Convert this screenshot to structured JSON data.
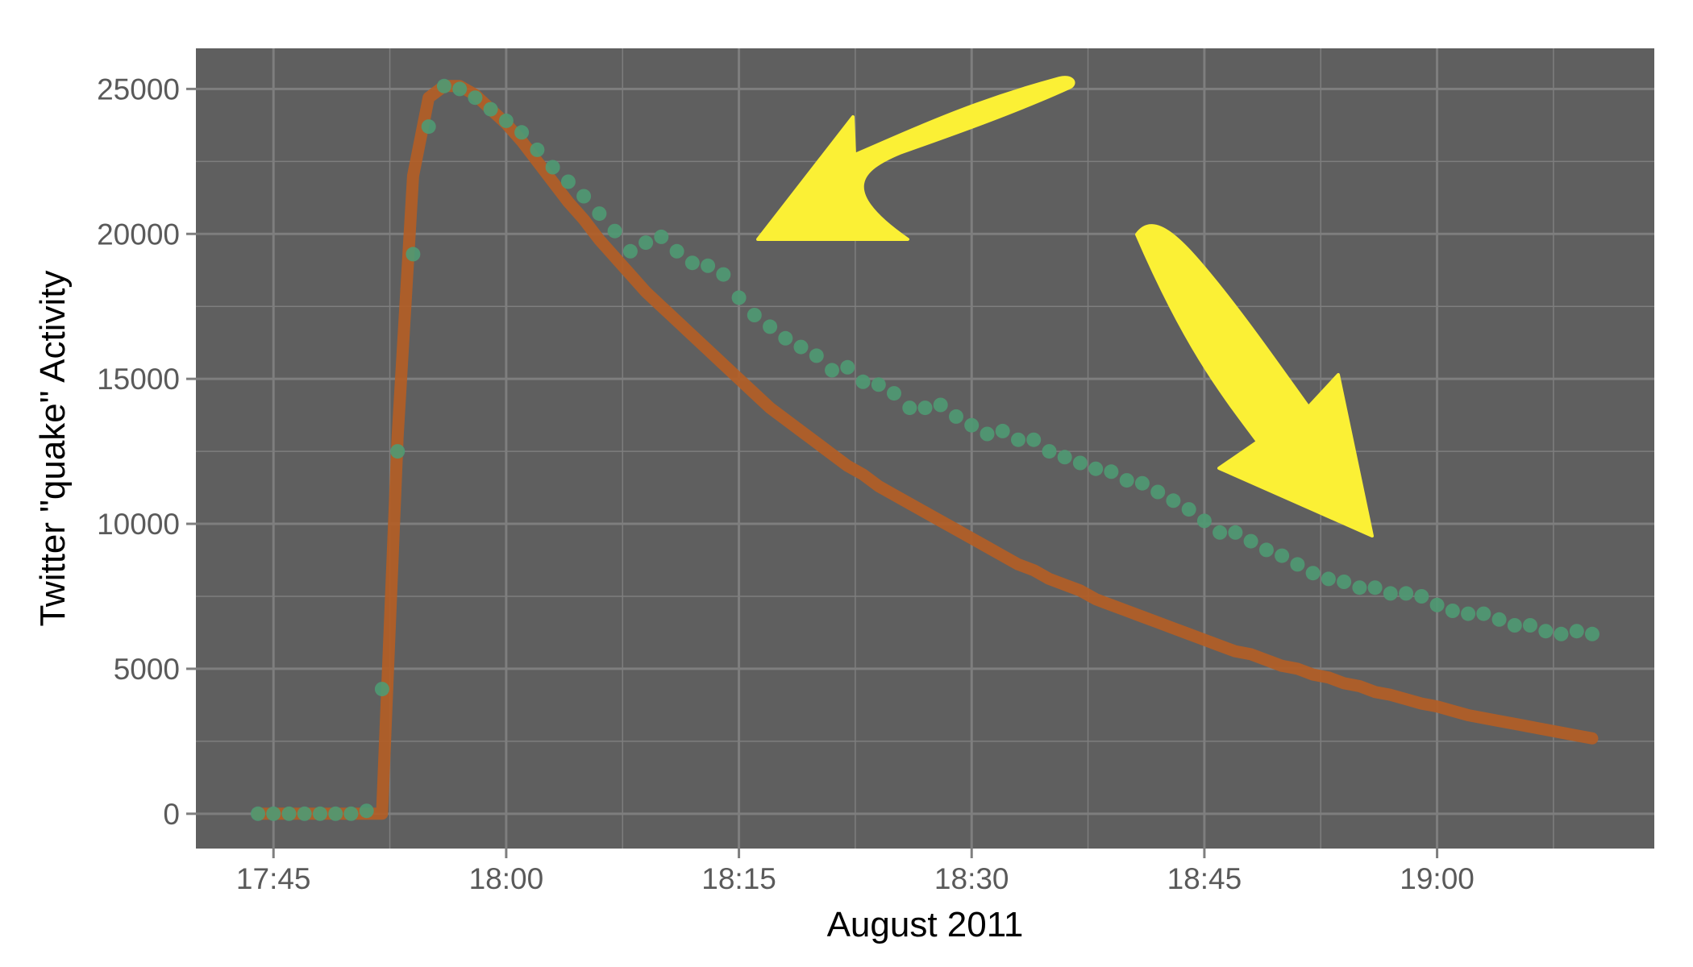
{
  "chart_data": {
    "type": "scatter",
    "title": "",
    "xlabel": "August 2011",
    "ylabel": "Twitter \"quake\" Activity",
    "x_unit": "time of day (HH:MM)",
    "xlim": [
      "17:40",
      "19:14"
    ],
    "ylim": [
      -1200,
      26400
    ],
    "x_ticks": [
      "17:45",
      "18:00",
      "18:15",
      "18:30",
      "18:45",
      "19:00"
    ],
    "y_ticks": [
      0,
      5000,
      10000,
      15000,
      20000,
      25000
    ],
    "y_tick_labels": [
      "0",
      "5000",
      "10000",
      "15000",
      "20000",
      "25000"
    ],
    "grid": true,
    "legend": "none",
    "colors": {
      "panel": "#5f5f5f",
      "grid": "#7e7e7e",
      "observed_points": "#4f9a73",
      "fitted_curve": "#b35e26",
      "arrows": "#fbf035"
    },
    "series": [
      {
        "kind": "points",
        "x": [
          "17:44",
          "17:45",
          "17:46",
          "17:47",
          "17:48",
          "17:49",
          "17:50",
          "17:51",
          "17:52",
          "17:53",
          "17:54",
          "17:55",
          "17:56",
          "17:57",
          "17:58",
          "17:59",
          "18:00",
          "18:01",
          "18:02",
          "18:03",
          "18:04",
          "18:05",
          "18:06",
          "18:07",
          "18:08",
          "18:09",
          "18:10",
          "18:11",
          "18:12",
          "18:13",
          "18:14",
          "18:15",
          "18:16",
          "18:17",
          "18:18",
          "18:19",
          "18:20",
          "18:21",
          "18:22",
          "18:23",
          "18:24",
          "18:25",
          "18:26",
          "18:27",
          "18:28",
          "18:29",
          "18:30",
          "18:31",
          "18:32",
          "18:33",
          "18:34",
          "18:35",
          "18:36",
          "18:37",
          "18:38",
          "18:39",
          "18:40",
          "18:41",
          "18:42",
          "18:43",
          "18:44",
          "18:45",
          "18:46",
          "18:47",
          "18:48",
          "18:49",
          "18:50",
          "18:51",
          "18:52",
          "18:53",
          "18:54",
          "18:55",
          "18:56",
          "18:57",
          "18:58",
          "18:59",
          "19:00",
          "19:01",
          "19:02",
          "19:03",
          "19:04",
          "19:05",
          "19:06",
          "19:07",
          "19:08",
          "19:09",
          "19:10"
        ],
        "y": [
          0,
          0,
          0,
          0,
          0,
          0,
          0,
          100,
          4300,
          12500,
          19300,
          23700,
          25100,
          25000,
          24700,
          24300,
          23900,
          23500,
          22900,
          22300,
          21800,
          21300,
          20700,
          20100,
          19400,
          19700,
          19900,
          19400,
          19000,
          18900,
          18600,
          17800,
          17200,
          16800,
          16400,
          16100,
          15800,
          15300,
          15400,
          14900,
          14800,
          14500,
          14000,
          14000,
          14100,
          13700,
          13400,
          13100,
          13200,
          12900,
          12900,
          12500,
          12300,
          12100,
          11900,
          11800,
          11500,
          11400,
          11100,
          10800,
          10500,
          10100,
          9700,
          9700,
          9400,
          9100,
          8900,
          8600,
          8300,
          8100,
          8000,
          7800,
          7800,
          7600,
          7600,
          7500,
          7200,
          7000,
          6900,
          6900,
          6700,
          6500,
          6500,
          6300,
          6200,
          6300,
          6200
        ]
      },
      {
        "kind": "line",
        "x": [
          "17:44",
          "17:45",
          "17:46",
          "17:47",
          "17:48",
          "17:49",
          "17:50",
          "17:51",
          "17:52",
          "17:53",
          "17:54",
          "17:55",
          "17:56",
          "17:57",
          "17:58",
          "17:59",
          "18:00",
          "18:01",
          "18:02",
          "18:03",
          "18:04",
          "18:05",
          "18:06",
          "18:07",
          "18:08",
          "18:09",
          "18:10",
          "18:11",
          "18:12",
          "18:13",
          "18:14",
          "18:15",
          "18:16",
          "18:17",
          "18:18",
          "18:19",
          "18:20",
          "18:21",
          "18:22",
          "18:23",
          "18:24",
          "18:25",
          "18:26",
          "18:27",
          "18:28",
          "18:29",
          "18:30",
          "18:31",
          "18:32",
          "18:33",
          "18:34",
          "18:35",
          "18:36",
          "18:37",
          "18:38",
          "18:39",
          "18:40",
          "18:41",
          "18:42",
          "18:43",
          "18:44",
          "18:45",
          "18:46",
          "18:47",
          "18:48",
          "18:49",
          "18:50",
          "18:51",
          "18:52",
          "18:53",
          "18:54",
          "18:55",
          "18:56",
          "18:57",
          "18:58",
          "18:59",
          "19:00",
          "19:01",
          "19:02",
          "19:03",
          "19:04",
          "19:05",
          "19:06",
          "19:07",
          "19:08",
          "19:09",
          "19:10"
        ],
        "y": [
          0,
          0,
          0,
          0,
          0,
          0,
          0,
          0,
          0,
          13000,
          22000,
          24700,
          25100,
          25100,
          24800,
          24300,
          23800,
          23200,
          22500,
          21800,
          21100,
          20500,
          19800,
          19200,
          18600,
          18000,
          17500,
          17000,
          16500,
          16000,
          15500,
          15000,
          14500,
          14000,
          13600,
          13200,
          12800,
          12400,
          12000,
          11700,
          11300,
          11000,
          10700,
          10400,
          10100,
          9800,
          9500,
          9200,
          8900,
          8600,
          8400,
          8100,
          7900,
          7700,
          7400,
          7200,
          7000,
          6800,
          6600,
          6400,
          6200,
          6000,
          5800,
          5600,
          5500,
          5300,
          5100,
          5000,
          4800,
          4700,
          4500,
          4400,
          4200,
          4100,
          3950,
          3800,
          3700,
          3550,
          3400,
          3300,
          3200,
          3100,
          3000,
          2900,
          2800,
          2700,
          2600
        ]
      }
    ],
    "annotations": [
      {
        "type": "arrow",
        "color": "#fbf035",
        "points_to": "steeper decay of the fitted curve near 18:15"
      },
      {
        "type": "arrow",
        "color": "#fbf035",
        "points_to": "gap between observed points and fitted curve near 18:55"
      }
    ]
  }
}
